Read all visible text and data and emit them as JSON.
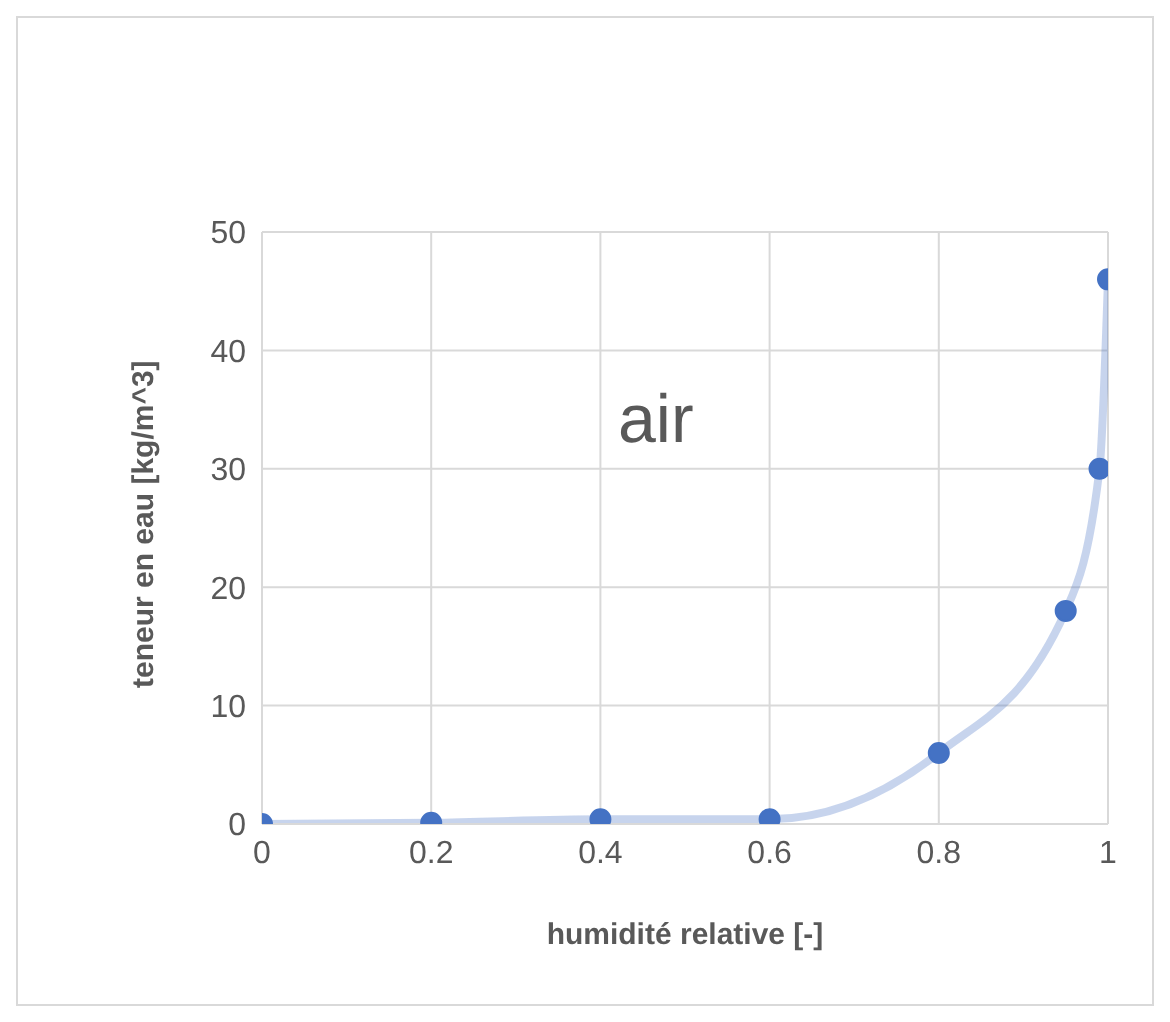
{
  "chart_data": {
    "type": "line",
    "xlabel": "humidité relative [-]",
    "ylabel": "teneur en eau [kg/m^3]",
    "annotations": [
      "air"
    ],
    "x": [
      0,
      0.2,
      0.4,
      0.6,
      0.8,
      0.95,
      0.99,
      1
    ],
    "series": [
      {
        "color": "#4472c4",
        "values": [
          0,
          0.1,
          0.4,
          0.4,
          6,
          18,
          30,
          46
        ]
      }
    ],
    "xlim": [
      0,
      1
    ],
    "xticks": [
      0,
      0.2,
      0.4,
      0.6,
      0.8,
      1
    ],
    "ylim": [
      0,
      50
    ],
    "yticks": [
      0,
      10,
      20,
      30,
      40,
      50
    ],
    "grid": true,
    "legend": false,
    "marker": "circle",
    "line_style": "solid"
  }
}
